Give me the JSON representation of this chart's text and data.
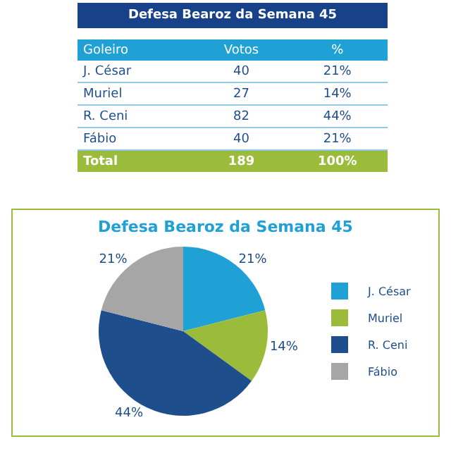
{
  "chart_data": {
    "type": "pie",
    "title": "Defesa Bearoz da Semana 45",
    "categories": [
      "J. César",
      "Muriel",
      "R. Ceni",
      "Fábio"
    ],
    "values": [
      21,
      14,
      44,
      21
    ],
    "value_labels": [
      "21%",
      "14%",
      "44%",
      "21%"
    ],
    "colors": [
      "#1fa1d6",
      "#9bbb3b",
      "#1f4e8c",
      "#a6a6a6"
    ],
    "legend": "right",
    "annotations": [
      "Goleiro",
      "Votos",
      "%",
      "40",
      "27",
      "82",
      "40",
      "Total",
      "189",
      "100%"
    ]
  }
}
